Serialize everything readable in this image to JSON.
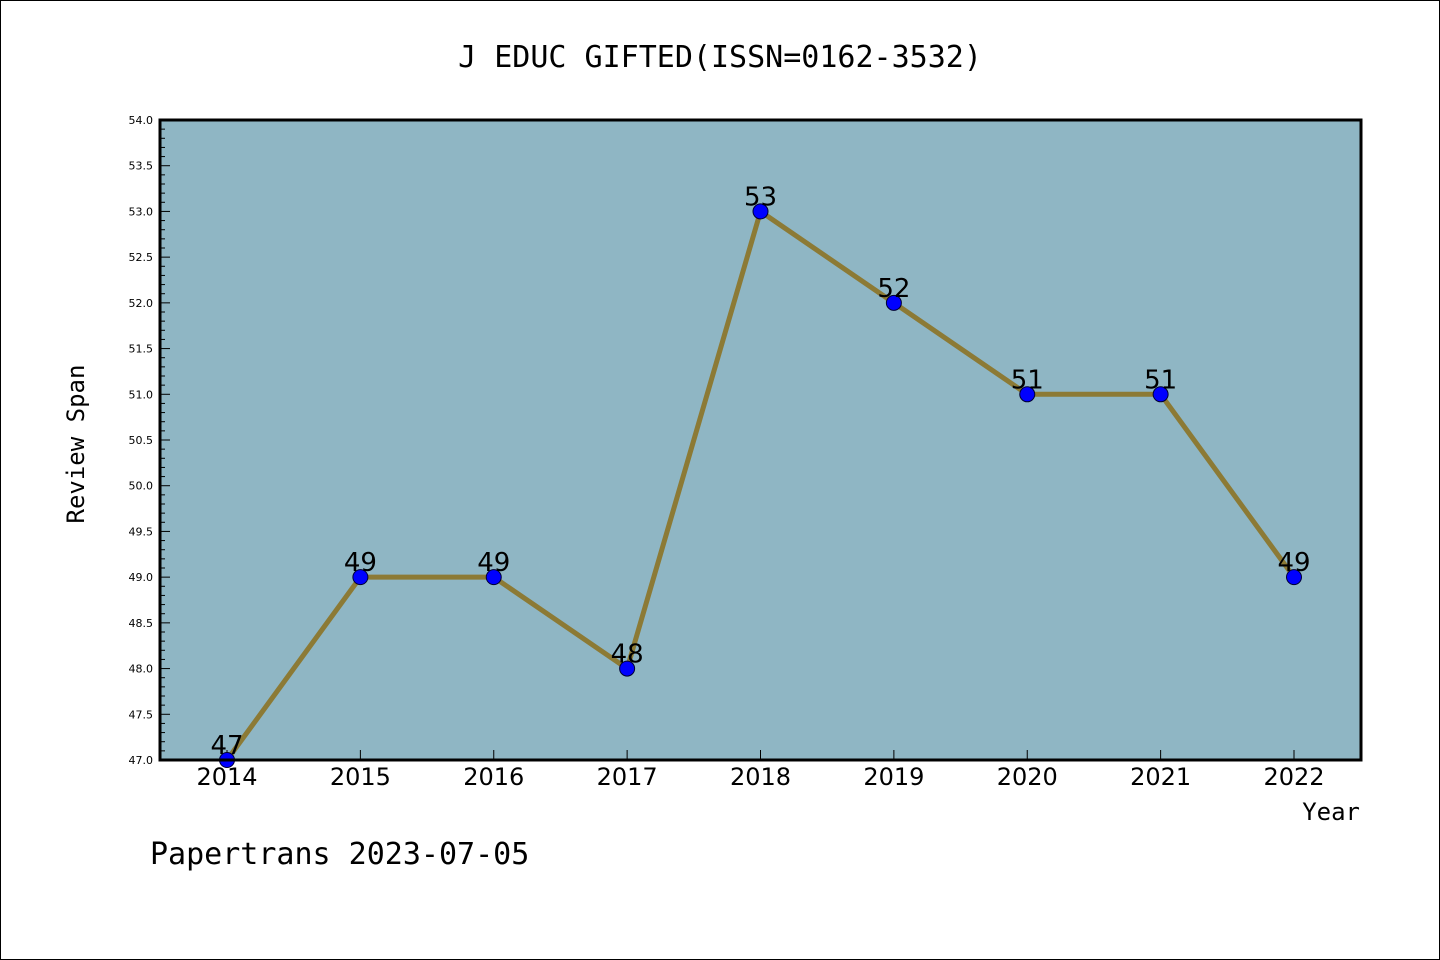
{
  "chart_data": {
    "type": "line",
    "title": "J EDUC GIFTED(ISSN=0162-3532)",
    "xlabel": "Year",
    "ylabel": "Review Span",
    "categories": [
      "2014",
      "2015",
      "2016",
      "2017",
      "2018",
      "2019",
      "2020",
      "2021",
      "2022"
    ],
    "values": [
      47,
      49,
      49,
      48,
      53,
      52,
      51,
      51,
      49
    ],
    "data_labels": [
      "47",
      "49",
      "49",
      "48",
      "53",
      "52",
      "51",
      "51",
      "49"
    ],
    "ylim": [
      47.0,
      54.0
    ],
    "yticks": [
      "47.0",
      "47.5",
      "48.0",
      "48.5",
      "49.0",
      "49.5",
      "50.0",
      "50.5",
      "51.0",
      "51.5",
      "52.0",
      "52.5",
      "53.0",
      "53.5",
      "54.0"
    ],
    "grid": false,
    "legend": "none",
    "colors": {
      "plot_background": "#8fb6c4",
      "line": "#8c7a35",
      "marker": "#0000ff",
      "marker_edge": "#000033"
    }
  },
  "footer": "Papertrans 2023-07-05"
}
